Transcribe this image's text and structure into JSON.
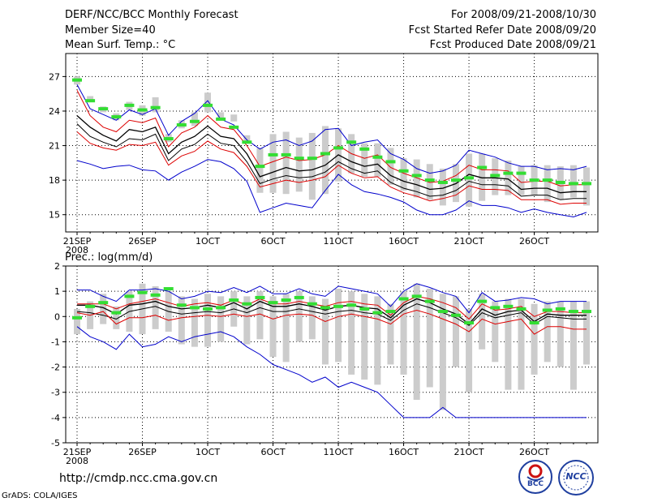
{
  "header": {
    "title": "DERF/NCC/BCC Monthly Forecast",
    "member_size": "Member Size=40",
    "variable": "Mean Surf. Temp.: °C",
    "period": "For 2008/09/21-2008/10/30",
    "started": "Fcst Started Refer Date 2008/09/20",
    "produced": "Fcst Produced Date 2008/09/21"
  },
  "footer": {
    "url": "http://cmdp.ncc.cma.gov.cn",
    "grads": "GrADS: COLA/IGES",
    "logo_bcc": "BCC",
    "logo_ncc": "NCC"
  },
  "colors": {
    "median": "#000000",
    "quartile": "#dd0000",
    "extreme": "#0000cc",
    "box": "#cccccc",
    "observed": "#33dd33"
  },
  "chart_data": [
    {
      "type": "line",
      "title": "Mean Surf. Temp.: °C",
      "ylim": [
        13.5,
        29
      ],
      "yticks": [
        15,
        18,
        21,
        24,
        27
      ],
      "ytick_labels": [
        "15",
        "18",
        "21",
        "24",
        "27"
      ],
      "xlim": [
        0,
        39
      ],
      "xticks": [
        0,
        5,
        10,
        15,
        20,
        25,
        30,
        35
      ],
      "xtick_labels": [
        "21SEP",
        "26SEP",
        "1OCT",
        "6OCT",
        "11OCT",
        "16OCT",
        "21OCT",
        "26OCT"
      ],
      "xsub_label": "2008",
      "grid": true,
      "series": [
        {
          "name": "max",
          "values": [
            26.3,
            24.2,
            23.7,
            23.2,
            24.1,
            23.7,
            24.2,
            21.9,
            23.1,
            23.8,
            24.9,
            23.3,
            22.8,
            21.5,
            20.7,
            21.3,
            21.5,
            21.0,
            21.4,
            22.4,
            22.5,
            21.0,
            21.3,
            21.5,
            20.3,
            19.8,
            19.0,
            18.6,
            18.8,
            19.3,
            20.6,
            20.3,
            20.0,
            19.5,
            19.2,
            19.2,
            18.9,
            19.0,
            18.9,
            19.2
          ]
        },
        {
          "name": "q75",
          "values": [
            25.8,
            23.6,
            22.6,
            22.2,
            23.2,
            23.0,
            23.4,
            20.9,
            22.1,
            22.6,
            23.6,
            22.6,
            22.4,
            21.0,
            19.2,
            19.6,
            20.0,
            19.7,
            19.8,
            20.2,
            21.0,
            20.3,
            19.9,
            20.2,
            19.1,
            18.6,
            18.2,
            17.8,
            17.9,
            18.4,
            19.3,
            18.9,
            18.9,
            18.8,
            17.8,
            17.9,
            17.9,
            17.5,
            17.6,
            17.6
          ]
        },
        {
          "name": "median",
          "values": [
            23.6,
            22.6,
            21.9,
            21.4,
            22.4,
            22.2,
            22.6,
            20.3,
            21.3,
            21.8,
            22.7,
            21.8,
            21.6,
            20.3,
            18.3,
            18.7,
            19.1,
            18.8,
            18.9,
            19.3,
            20.2,
            19.6,
            19.2,
            19.4,
            18.4,
            17.9,
            17.6,
            17.2,
            17.3,
            17.7,
            18.5,
            18.2,
            18.2,
            18.1,
            17.2,
            17.3,
            17.3,
            16.9,
            17.0,
            17.0
          ]
        },
        {
          "name": "q25",
          "values": [
            22.9,
            21.8,
            21.3,
            20.9,
            21.6,
            21.5,
            22.0,
            19.7,
            20.7,
            21.1,
            22.0,
            21.2,
            21.0,
            19.6,
            17.7,
            18.1,
            18.4,
            18.2,
            18.3,
            18.7,
            19.6,
            19.0,
            18.6,
            18.8,
            17.8,
            17.3,
            17.0,
            16.6,
            16.7,
            17.1,
            17.9,
            17.6,
            17.6,
            17.5,
            16.6,
            16.7,
            16.7,
            16.3,
            16.4,
            16.4
          ]
        },
        {
          "name": "q10",
          "values": [
            22.2,
            21.2,
            20.8,
            20.6,
            21.1,
            21.0,
            21.3,
            19.3,
            20.1,
            20.5,
            21.4,
            20.7,
            20.4,
            19.2,
            17.4,
            17.7,
            18.0,
            17.8,
            18.0,
            18.3,
            19.3,
            18.6,
            18.2,
            18.3,
            17.4,
            16.9,
            16.6,
            16.2,
            16.4,
            16.7,
            17.5,
            17.2,
            17.2,
            17.1,
            16.3,
            16.3,
            16.3,
            15.9,
            16.0,
            16.0
          ]
        },
        {
          "name": "min",
          "values": [
            19.7,
            19.4,
            19.0,
            19.2,
            19.3,
            18.9,
            18.8,
            18.0,
            18.7,
            19.2,
            19.8,
            19.6,
            19.0,
            17.9,
            15.2,
            15.6,
            16.0,
            15.8,
            15.6,
            17.1,
            18.5,
            17.6,
            17.0,
            16.8,
            16.5,
            16.1,
            15.4,
            15.0,
            15.0,
            15.4,
            16.2,
            15.8,
            15.8,
            15.6,
            15.2,
            15.5,
            15.2,
            15.0,
            14.8,
            15.2
          ]
        },
        {
          "name": "observed",
          "values": [
            26.7,
            24.9,
            24.2,
            23.5,
            24.5,
            24.1,
            24.3,
            21.6,
            22.8,
            23.1,
            24.5,
            23.3,
            22.6,
            21.3,
            19.2,
            20.2,
            20.2,
            19.9,
            19.9,
            20.3,
            20.8,
            21.3,
            20.7,
            20.0,
            19.6,
            18.8,
            18.4,
            18.0,
            17.8,
            18.0,
            18.2,
            19.1,
            18.4,
            18.6,
            18.6,
            18.0,
            18.0,
            17.8,
            17.7,
            17.7
          ]
        }
      ]
    },
    {
      "type": "line",
      "title": "Prec.: log(mm/d)",
      "ylim": [
        -5,
        2
      ],
      "yticks": [
        -5,
        -4,
        -3,
        -2,
        -1,
        0,
        1,
        2
      ],
      "ytick_labels": [
        "-5",
        "-4",
        "-3",
        "-2",
        "-1",
        "0",
        "1",
        "2"
      ],
      "xlim": [
        0,
        39
      ],
      "xticks": [
        0,
        5,
        10,
        15,
        20,
        25,
        30,
        35
      ],
      "xtick_labels": [
        "21SEP",
        "26SEP",
        "1OCT",
        "6OCT",
        "11OCT",
        "16OCT",
        "21OCT",
        "26OCT"
      ],
      "xsub_label": "2008",
      "grid": true,
      "series": [
        {
          "name": "max",
          "values": [
            1.05,
            1.05,
            0.8,
            0.6,
            1.05,
            1.05,
            1.1,
            1.0,
            0.7,
            0.8,
            1.0,
            0.95,
            1.15,
            0.95,
            1.2,
            0.9,
            0.9,
            1.1,
            0.9,
            0.8,
            1.2,
            1.1,
            1.0,
            0.9,
            0.4,
            1.0,
            1.3,
            1.15,
            0.95,
            0.8,
            0.15,
            0.95,
            0.6,
            0.65,
            0.75,
            0.7,
            0.5,
            0.6,
            0.6,
            0.6
          ]
        },
        {
          "name": "q75",
          "values": [
            0.5,
            0.5,
            0.5,
            0.3,
            0.5,
            0.6,
            0.7,
            0.55,
            0.4,
            0.5,
            0.55,
            0.45,
            0.65,
            0.45,
            0.7,
            0.5,
            0.5,
            0.6,
            0.5,
            0.4,
            0.55,
            0.6,
            0.5,
            0.45,
            0.05,
            0.55,
            0.8,
            0.7,
            0.55,
            0.35,
            -0.1,
            0.5,
            0.25,
            0.3,
            0.4,
            0.0,
            0.2,
            0.2,
            0.15,
            0.15
          ]
        },
        {
          "name": "median",
          "values": [
            0.45,
            0.45,
            0.35,
            0.1,
            0.45,
            0.5,
            0.6,
            0.4,
            0.3,
            0.35,
            0.45,
            0.35,
            0.55,
            0.3,
            0.6,
            0.4,
            0.4,
            0.5,
            0.4,
            0.25,
            0.4,
            0.45,
            0.35,
            0.3,
            -0.05,
            0.45,
            0.7,
            0.55,
            0.3,
            0.1,
            -0.3,
            0.3,
            0.05,
            0.2,
            0.25,
            -0.2,
            0.1,
            0.05,
            0.05,
            0.05
          ]
        },
        {
          "name": "q25",
          "values": [
            0.2,
            0.15,
            0.05,
            -0.1,
            0.2,
            0.3,
            0.4,
            0.2,
            0.1,
            0.15,
            0.2,
            0.15,
            0.3,
            0.15,
            0.35,
            0.2,
            0.2,
            0.3,
            0.2,
            0.1,
            0.2,
            0.25,
            0.15,
            0.1,
            -0.15,
            0.25,
            0.5,
            0.35,
            0.15,
            -0.05,
            -0.35,
            0.15,
            -0.05,
            0.05,
            0.15,
            -0.3,
            0.0,
            -0.05,
            -0.1,
            -0.1
          ]
        },
        {
          "name": "q10",
          "values": [
            0.15,
            0.05,
            0.2,
            -0.3,
            -0.05,
            -0.05,
            0.05,
            -0.15,
            -0.05,
            0.0,
            0.05,
            0.0,
            0.1,
            0.0,
            0.1,
            -0.1,
            0.05,
            0.1,
            0.05,
            -0.2,
            0.0,
            0.1,
            0.0,
            -0.1,
            -0.3,
            0.1,
            0.25,
            0.1,
            -0.1,
            -0.3,
            -0.6,
            -0.1,
            -0.3,
            -0.2,
            -0.1,
            -0.7,
            -0.4,
            -0.4,
            -0.5,
            -0.5
          ]
        },
        {
          "name": "min",
          "values": [
            -0.4,
            -0.8,
            -1.0,
            -1.3,
            -0.7,
            -1.2,
            -1.1,
            -0.8,
            -1.0,
            -0.8,
            -0.7,
            -0.6,
            -0.8,
            -1.2,
            -1.5,
            -1.9,
            -2.1,
            -2.3,
            -2.6,
            -2.4,
            -2.8,
            -2.6,
            -2.8,
            -3.0,
            -3.5,
            -4.0,
            -4.0,
            -4.0,
            -3.6,
            -4.0,
            -4.0,
            -4.0,
            -4.0,
            -4.0,
            -4.0,
            -4.0,
            -4.0,
            -4.0,
            -4.0,
            -4.0
          ]
        },
        {
          "name": "observed",
          "values": [
            -0.05,
            0.4,
            0.55,
            0.15,
            0.8,
            0.95,
            0.85,
            1.1,
            0.45,
            0.35,
            0.3,
            0.35,
            0.65,
            0.5,
            0.75,
            0.55,
            0.65,
            0.75,
            0.5,
            0.35,
            0.4,
            0.45,
            0.3,
            0.15,
            0.2,
            0.7,
            0.8,
            0.6,
            0.2,
            0.05,
            -0.25,
            0.6,
            0.35,
            0.4,
            0.3,
            -0.25,
            0.25,
            0.3,
            0.2,
            0.2
          ]
        }
      ],
      "boxes": {
        "upper": [
          0.3,
          0.6,
          0.9,
          0.4,
          1.0,
          1.3,
          1.2,
          1.0,
          0.8,
          0.7,
          0.9,
          0.8,
          1.0,
          0.8,
          1.0,
          0.8,
          0.9,
          1.0,
          0.8,
          0.7,
          1.1,
          1.0,
          0.9,
          0.8,
          0.5,
          1.0,
          1.3,
          1.1,
          0.9,
          0.8,
          0.3,
          0.9,
          0.6,
          0.7,
          0.7,
          0.5,
          0.6,
          0.6,
          0.6,
          0.6
        ],
        "lower": [
          -0.7,
          -0.5,
          -0.3,
          -0.5,
          -0.6,
          -0.7,
          -0.5,
          -0.6,
          -1.1,
          -1.2,
          -1.2,
          -1.0,
          -0.4,
          -1.1,
          -0.9,
          -1.6,
          -1.8,
          -1.0,
          -0.9,
          -1.9,
          -1.8,
          -2.3,
          -2.5,
          -2.7,
          -1.9,
          -2.3,
          -3.3,
          -2.8,
          -3.7,
          -2.0,
          -3.0,
          -1.3,
          -1.8,
          -2.9,
          -2.9,
          -2.3,
          -1.8,
          -2.0,
          -2.9,
          -1.9
        ]
      }
    }
  ],
  "top_boxes": {
    "upper": [
      27.0,
      25.3,
      24.4,
      23.8,
      24.8,
      24.5,
      25.2,
      22.0,
      23.2,
      23.9,
      25.6,
      23.9,
      23.7,
      21.9,
      20.8,
      22.0,
      22.2,
      21.7,
      22.1,
      22.7,
      22.5,
      22.0,
      21.2,
      21.2,
      20.8,
      19.9,
      19.8,
      19.4,
      19.0,
      19.4,
      20.3,
      20.3,
      19.9,
      19.7,
      19.2,
      19.3,
      19.3,
      19.2,
      19.3,
      19.1
    ],
    "lower": [
      26.3,
      24.8,
      23.9,
      23.2,
      24.1,
      23.6,
      23.9,
      21.3,
      22.5,
      22.7,
      23.9,
      23.3,
      23.1,
      21.4,
      16.9,
      16.9,
      16.8,
      17.0,
      16.3,
      16.8,
      17.9,
      18.6,
      18.3,
      18.3,
      17.6,
      17.1,
      16.5,
      16.3,
      15.8,
      16.1,
      15.7,
      16.2,
      16.7,
      16.7,
      16.7,
      16.7,
      16.1,
      16.3,
      16.5,
      15.8
    ]
  }
}
